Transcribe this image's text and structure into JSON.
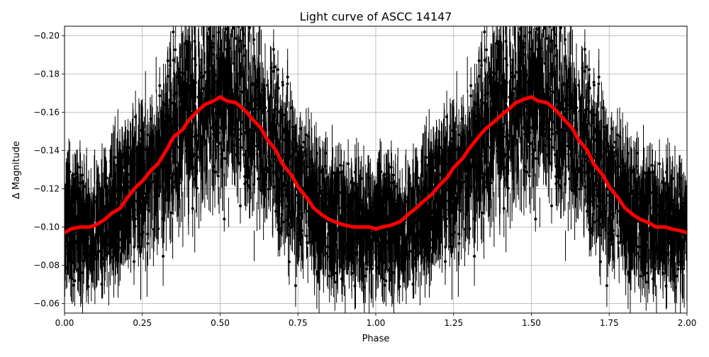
{
  "figure": {
    "title": "Light curve of ASCC 14147",
    "xlabel": "Phase",
    "ylabel": "Δ Magnitude"
  },
  "chart_data": {
    "type": "scatter",
    "title": "Light curve of ASCC 14147",
    "xlabel": "Phase",
    "ylabel": "Δ Magnitude",
    "xlim": [
      0.0,
      2.0
    ],
    "ylim": [
      -0.055,
      -0.205
    ],
    "y_inverted": true,
    "grid": true,
    "legend": null,
    "xticks": [
      "0.00",
      "0.25",
      "0.50",
      "0.75",
      "1.00",
      "1.25",
      "1.50",
      "1.75",
      "2.00"
    ],
    "yticks": [
      "−0.20",
      "−0.18",
      "−0.16",
      "−0.14",
      "−0.12",
      "−0.10",
      "−0.08",
      "−0.06"
    ],
    "series": [
      {
        "name": "observations",
        "kind": "errorbar-scatter",
        "color": "#000000",
        "description": "dense phase-folded photometry with error bars, scatter spanning roughly -0.055 to -0.205 mag",
        "envelope_upper": [
          [
            0.0,
            -0.145
          ],
          [
            0.25,
            -0.17
          ],
          [
            0.5,
            -0.21
          ],
          [
            0.75,
            -0.16
          ],
          [
            1.0,
            -0.14
          ],
          [
            1.25,
            -0.17
          ],
          [
            1.5,
            -0.21
          ],
          [
            1.75,
            -0.16
          ],
          [
            2.0,
            -0.145
          ]
        ],
        "envelope_lower": [
          [
            0.0,
            -0.055
          ],
          [
            0.25,
            -0.06
          ],
          [
            0.5,
            -0.08
          ],
          [
            0.75,
            -0.06
          ],
          [
            1.0,
            -0.055
          ],
          [
            1.25,
            -0.06
          ],
          [
            1.5,
            -0.08
          ],
          [
            1.75,
            -0.06
          ],
          [
            2.0,
            -0.055
          ]
        ]
      },
      {
        "name": "binned trend",
        "kind": "line",
        "color": "#ff0000",
        "x": [
          0.0,
          0.02,
          0.05,
          0.08,
          0.1,
          0.13,
          0.15,
          0.18,
          0.2,
          0.23,
          0.25,
          0.28,
          0.3,
          0.33,
          0.35,
          0.38,
          0.4,
          0.43,
          0.45,
          0.48,
          0.5,
          0.52,
          0.55,
          0.58,
          0.6,
          0.63,
          0.65,
          0.68,
          0.7,
          0.73,
          0.75,
          0.78,
          0.8,
          0.83,
          0.85,
          0.88,
          0.9,
          0.93,
          0.95,
          0.98,
          1.0,
          1.02,
          1.05,
          1.08,
          1.1,
          1.13,
          1.15,
          1.18,
          1.2,
          1.23,
          1.25,
          1.28,
          1.3,
          1.33,
          1.35,
          1.38,
          1.4,
          1.43,
          1.45,
          1.48,
          1.5,
          1.52,
          1.55,
          1.58,
          1.6,
          1.63,
          1.65,
          1.68,
          1.7,
          1.73,
          1.75,
          1.78,
          1.8,
          1.83,
          1.85,
          1.88,
          1.9,
          1.93,
          1.95,
          1.98,
          2.0
        ],
        "y": [
          -0.097,
          -0.099,
          -0.1,
          -0.1,
          -0.101,
          -0.104,
          -0.107,
          -0.11,
          -0.115,
          -0.121,
          -0.124,
          -0.13,
          -0.133,
          -0.141,
          -0.147,
          -0.151,
          -0.156,
          -0.161,
          -0.164,
          -0.166,
          -0.168,
          -0.166,
          -0.165,
          -0.161,
          -0.157,
          -0.152,
          -0.146,
          -0.14,
          -0.133,
          -0.127,
          -0.121,
          -0.115,
          -0.11,
          -0.106,
          -0.104,
          -0.102,
          -0.101,
          -0.1,
          -0.1,
          -0.1,
          -0.099,
          -0.1,
          -0.101,
          -0.103,
          -0.106,
          -0.11,
          -0.113,
          -0.117,
          -0.121,
          -0.126,
          -0.131,
          -0.136,
          -0.141,
          -0.147,
          -0.151,
          -0.155,
          -0.158,
          -0.162,
          -0.165,
          -0.167,
          -0.168,
          -0.166,
          -0.165,
          -0.161,
          -0.157,
          -0.152,
          -0.146,
          -0.14,
          -0.133,
          -0.127,
          -0.121,
          -0.115,
          -0.11,
          -0.106,
          -0.104,
          -0.102,
          -0.1,
          -0.1,
          -0.099,
          -0.098,
          -0.097
        ]
      }
    ]
  }
}
